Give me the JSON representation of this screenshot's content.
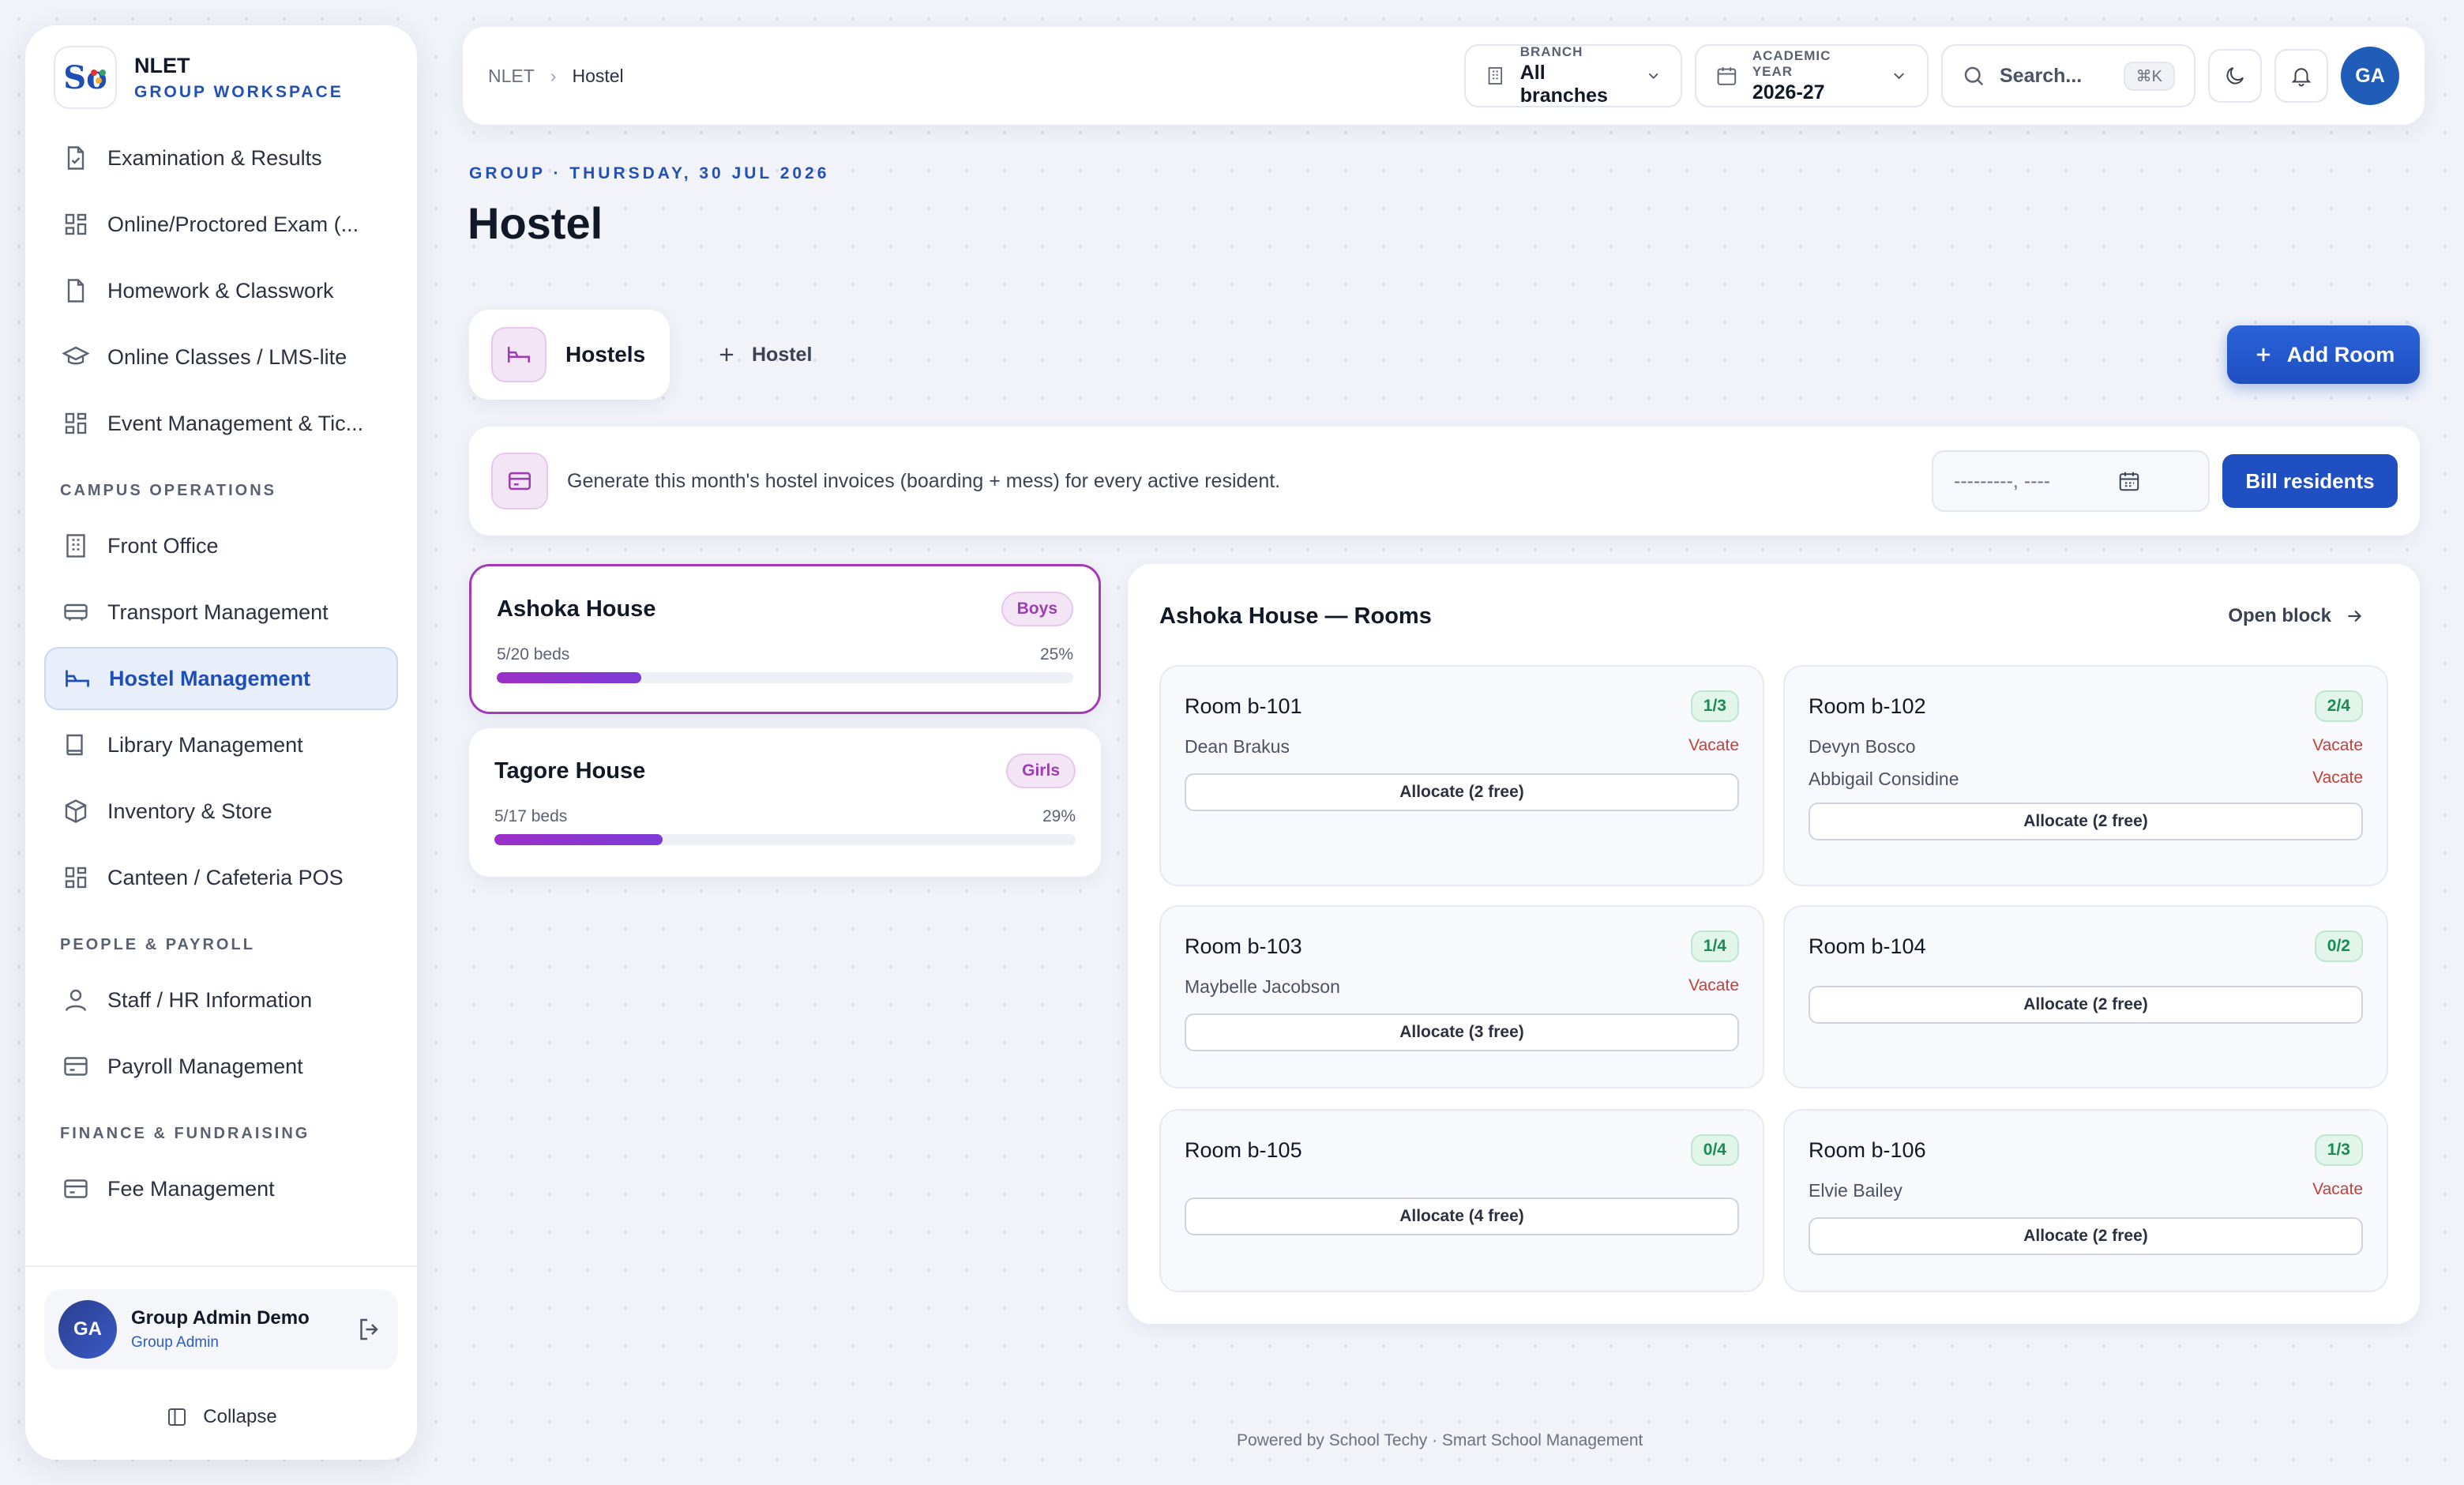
{
  "brand": {
    "logo_text": "So",
    "name": "NLET",
    "subtitle": "GROUP WORKSPACE"
  },
  "sidebar": {
    "items_top": [
      {
        "label": "Examination & Results",
        "icon": "file-check-icon"
      },
      {
        "label": "Online/Proctored Exam (...",
        "icon": "grid-icon"
      },
      {
        "label": "Homework & Classwork",
        "icon": "file-icon"
      },
      {
        "label": "Online Classes / LMS-lite",
        "icon": "graduation-cap-icon"
      },
      {
        "label": "Event Management & Tic...",
        "icon": "grid-icon"
      }
    ],
    "section_campus": "CAMPUS OPERATIONS",
    "items_campus": [
      {
        "label": "Front Office",
        "icon": "building-icon"
      },
      {
        "label": "Transport Management",
        "icon": "bus-icon"
      },
      {
        "label": "Hostel Management",
        "icon": "bed-icon",
        "active": true
      },
      {
        "label": "Library Management",
        "icon": "book-icon"
      },
      {
        "label": "Inventory & Store",
        "icon": "box-icon"
      },
      {
        "label": "Canteen / Cafeteria POS",
        "icon": "grid-icon"
      }
    ],
    "section_people": "PEOPLE & PAYROLL",
    "items_people": [
      {
        "label": "Staff / HR Information",
        "icon": "user-icon"
      },
      {
        "label": "Payroll Management",
        "icon": "card-icon"
      }
    ],
    "section_finance": "FINANCE & FUNDRAISING",
    "items_finance": [
      {
        "label": "Fee Management",
        "icon": "card-icon"
      }
    ],
    "user": {
      "initials": "GA",
      "name": "Group Admin Demo",
      "role": "Group Admin"
    },
    "collapse_label": "Collapse"
  },
  "topbar": {
    "breadcrumb_root": "NLET",
    "breadcrumb_current": "Hostel",
    "branch_label": "BRANCH",
    "branch_value": "All branches",
    "year_label": "ACADEMIC YEAR",
    "year_value": "2026-27",
    "search_placeholder": "Search...",
    "search_shortcut": "⌘K",
    "avatar_initials": "GA"
  },
  "header": {
    "kicker": "GROUP · THURSDAY, 30 JUL 2026",
    "title": "Hostel"
  },
  "tabs": {
    "active_label": "Hostels",
    "add_label": "Hostel"
  },
  "actions": {
    "add_room_label": "Add Room"
  },
  "billing": {
    "text": "Generate this month's hostel invoices (boarding + mess) for every active resident.",
    "month_placeholder": "---------, ----",
    "button_label": "Bill residents"
  },
  "hostels": [
    {
      "name": "Ashoka House",
      "tag": "Boys",
      "beds": "5/20 beds",
      "percent": "25%",
      "fill": 0.25
    },
    {
      "name": "Tagore House",
      "tag": "Girls",
      "beds": "5/17 beds",
      "percent": "29%",
      "fill": 0.29
    }
  ],
  "rooms_panel": {
    "title": "Ashoka House — Rooms",
    "open_block_label": "Open block",
    "vacate_label": "Vacate",
    "rooms": [
      {
        "name": "Room b-101",
        "occupancy": "1/3",
        "residents": [
          "Dean Brakus"
        ],
        "allocate": "Allocate (2 free)"
      },
      {
        "name": "Room b-102",
        "occupancy": "2/4",
        "residents": [
          "Devyn Bosco",
          "Abbigail Considine"
        ],
        "allocate": "Allocate (2 free)"
      },
      {
        "name": "Room b-103",
        "occupancy": "1/4",
        "residents": [
          "Maybelle Jacobson"
        ],
        "allocate": "Allocate (3 free)"
      },
      {
        "name": "Room b-104",
        "occupancy": "0/2",
        "residents": [],
        "allocate": "Allocate (2 free)"
      },
      {
        "name": "Room b-105",
        "occupancy": "0/4",
        "residents": [],
        "allocate": "Allocate (4 free)"
      },
      {
        "name": "Room b-106",
        "occupancy": "1/3",
        "residents": [
          "Elvie Bailey"
        ],
        "allocate": "Allocate (2 free)"
      }
    ]
  },
  "footer": {
    "text": "Powered by School Techy · Smart School Management"
  },
  "colors": {
    "accent": "#1f4fc0",
    "hostel_accent": "#9b3fb0",
    "occupancy": "#1c8a57",
    "vacate": "#c2413a"
  }
}
